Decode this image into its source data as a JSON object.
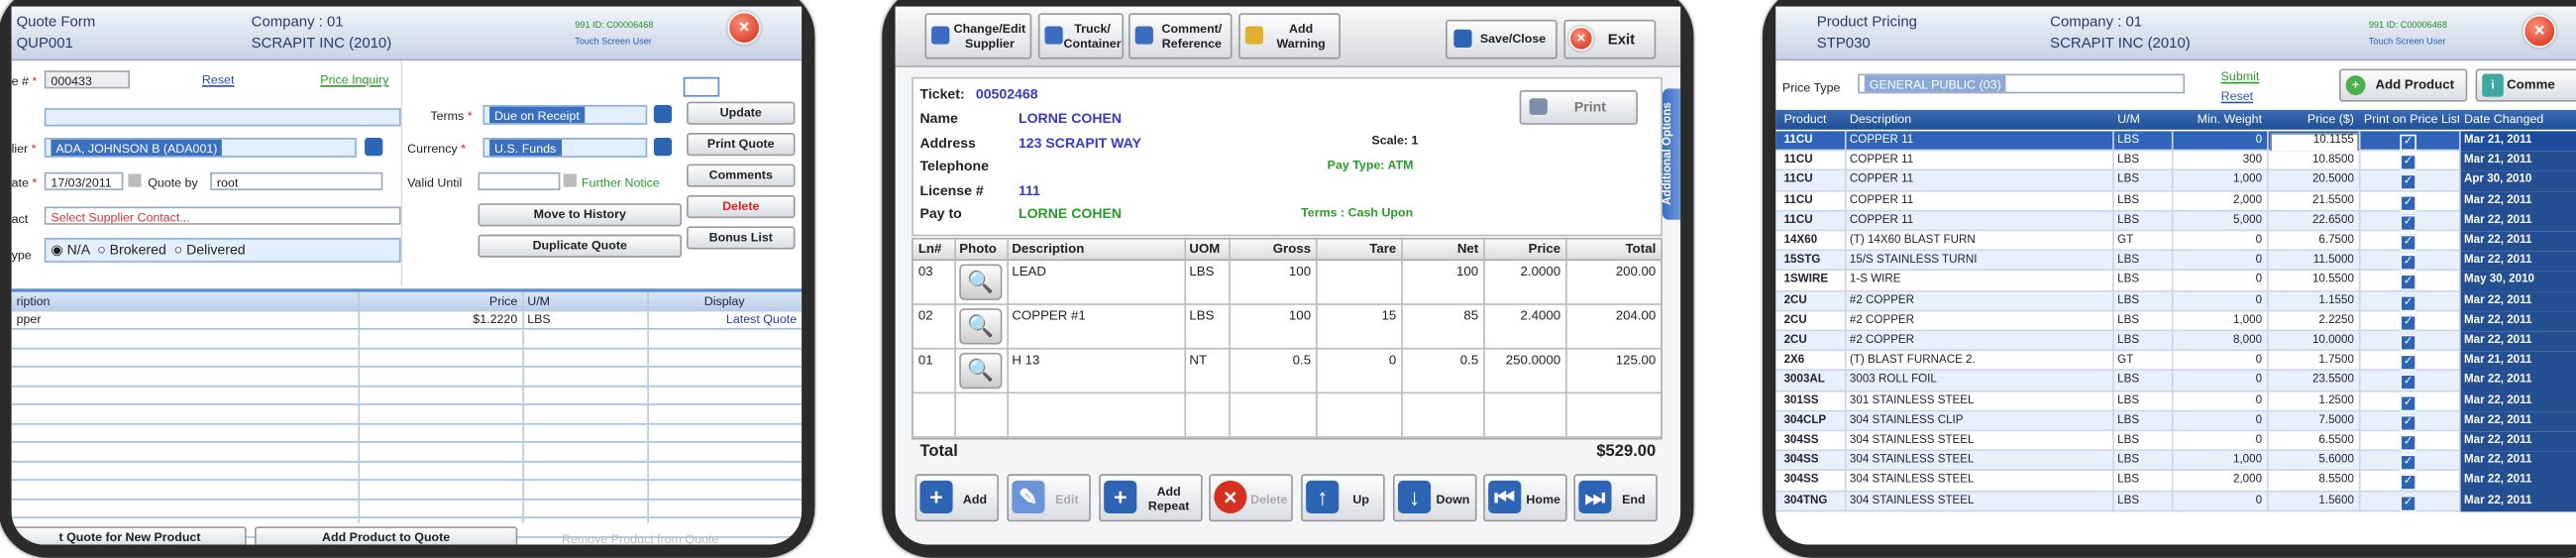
{
  "quote_form": {
    "title": "Quote Form",
    "code": "QUP001",
    "company": "Company : 01",
    "company_name": "SCRAPIT INC (2010)",
    "id": "991 ID: C00006468",
    "user": "Touch Screen User",
    "fields": {
      "quote_label": "e #",
      "quote_no": "000433",
      "reset": "Reset",
      "price_inquiry": "Price Inquiry",
      "terms_label": "Terms",
      "terms": "Due on Receipt",
      "supplier_label": "lier",
      "supplier": "ADA, JOHNSON B (ADA001)",
      "currency_label": "Currency",
      "currency": "U.S. Funds",
      "date_label": "ate",
      "date": "17/03/2011",
      "quote_by_label": "Quote by",
      "quote_by": "root",
      "valid_until_label": "Valid Until",
      "valid_until_note": "Further Notice",
      "contact_label": "act",
      "contact": "Select Supplier Contact...",
      "type_label": "ype",
      "type_options": [
        "N/A",
        "Brokered",
        "Delivered"
      ]
    },
    "buttons": {
      "update": "Update",
      "print_quote": "Print Quote",
      "comments": "Comments",
      "move_to_history": "Move to History",
      "delete": "Delete",
      "duplicate_quote": "Duplicate Quote",
      "bonus_list": "Bonus List"
    },
    "table": {
      "columns": [
        "ription",
        "Price",
        "U/M",
        "Display"
      ],
      "rows": [
        [
          "pper",
          "$1.2220",
          "LBS",
          "Latest Quote"
        ]
      ]
    },
    "bottom_buttons": [
      "t Quote for New Product",
      "Add Product to Quote",
      "Remove Product from Quote"
    ]
  },
  "ticket": {
    "toolbar": [
      "Change/Edit\nSupplier",
      "Truck/\nContainer",
      "Comment/\nReference",
      "Add\nWarning"
    ],
    "save_close": "Save/Close",
    "exit": "Exit",
    "info": {
      "ticket_label": "Ticket:",
      "ticket": "00502468",
      "name_label": "Name",
      "name": "LORNE COHEN",
      "address_label": "Address",
      "address": "123 SCRAPIT WAY",
      "scale": "Scale: 1",
      "telephone_label": "Telephone",
      "pay_type": "Pay Type: ATM",
      "license_label": "License #",
      "license": "111",
      "pay_to_label": "Pay to",
      "pay_to": "LORNE COHEN",
      "terms": "Terms : Cash Upon"
    },
    "print": "Print",
    "side_tab": "Additional Options",
    "table": {
      "columns": [
        "Ln#",
        "Photo",
        "Description",
        "UOM",
        "Gross",
        "Tare",
        "Net",
        "Price",
        "Total"
      ],
      "rows": [
        {
          "ln": "03",
          "description": "LEAD",
          "uom": "LBS",
          "gross": "100",
          "net": "100",
          "price": "2.0000",
          "total": "200.00"
        },
        {
          "ln": "02",
          "description": "COPPER #1",
          "uom": "LBS",
          "gross": "100",
          "tare": "15",
          "net": "85",
          "price": "2.4000",
          "total": "204.00"
        },
        {
          "ln": "01",
          "description": "H 13",
          "uom": "NT",
          "gross": "0.5",
          "tare": "0",
          "net": "0.5",
          "price": "250.0000",
          "total": "125.00"
        }
      ]
    },
    "total_label": "Total",
    "total": "$529.00",
    "buttons": [
      "Add",
      "Edit",
      "Add\nRepeat",
      "Delete",
      "Up",
      "Down",
      "Home",
      "End"
    ]
  },
  "product_pricing": {
    "title": "Product Pricing",
    "code": "STP030",
    "company": "Company : 01",
    "company_name": "SCRAPIT INC (2010)",
    "id": "991 ID: C00006468",
    "user": "Touch Screen User",
    "price_type_label": "Price Type",
    "price_type": "GENERAL PUBLIC (03)",
    "submit": "Submit",
    "reset": "Reset",
    "add_product": "Add Product",
    "comments": "Comme",
    "table": {
      "columns": [
        "Product",
        "Description",
        "U/M",
        "Min. Weight",
        "Price ($)",
        "Print on Price List",
        "Date Changed"
      ],
      "rows": [
        [
          "11CU",
          "COPPER 11",
          "LBS",
          "0",
          "10.1155",
          "Mar 21, 2011"
        ],
        [
          "11CU",
          "COPPER 11",
          "LBS",
          "300",
          "10.8500",
          "Mar 21, 2011"
        ],
        [
          "11CU",
          "COPPER 11",
          "LBS",
          "1,000",
          "20.5000",
          "Apr 30, 2010"
        ],
        [
          "11CU",
          "COPPER 11",
          "LBS",
          "2,000",
          "21.5500",
          "Mar 22, 2011"
        ],
        [
          "11CU",
          "COPPER 11",
          "LBS",
          "5,000",
          "22.6500",
          "Mar 22, 2011"
        ],
        [
          "14X60",
          "(T) 14X60 BLAST FURN",
          "GT",
          "0",
          "6.7500",
          "Mar 22, 2011"
        ],
        [
          "15STG",
          "15/S STAINLESS TURNI",
          "LBS",
          "0",
          "11.5000",
          "Mar 22, 2011"
        ],
        [
          "1SWIRE",
          "1-S WIRE",
          "LBS",
          "0",
          "10.5500",
          "May 30, 2010"
        ],
        [
          "2CU",
          "#2 COPPER",
          "LBS",
          "0",
          "1.1550",
          "Mar 22, 2011"
        ],
        [
          "2CU",
          "#2 COPPER",
          "LBS",
          "1,000",
          "2.2250",
          "Mar 22, 2011"
        ],
        [
          "2CU",
          "#2 COPPER",
          "LBS",
          "8,000",
          "10.0000",
          "Mar 22, 2011"
        ],
        [
          "2X6",
          "(T) BLAST FURNACE 2.",
          "GT",
          "0",
          "1.7500",
          "Mar 21, 2011"
        ],
        [
          "3003AL",
          "3003 ROLL FOIL",
          "LBS",
          "0",
          "23.5500",
          "Mar 22, 2011"
        ],
        [
          "301SS",
          "301 STAINLESS STEEL",
          "LBS",
          "0",
          "1.2500",
          "Mar 22, 2011"
        ],
        [
          "304CLP",
          "304 STAINLESS CLIP",
          "LBS",
          "0",
          "7.5000",
          "Mar 22, 2011"
        ],
        [
          "304SS",
          "304 STAINLESS STEEL",
          "LBS",
          "0",
          "6.5500",
          "Mar 22, 2011"
        ],
        [
          "304SS",
          "304 STAINLESS STEEL",
          "LBS",
          "1,000",
          "5.6000",
          "Mar 22, 2011"
        ],
        [
          "304SS",
          "304 STAINLESS STEEL",
          "LBS",
          "2,000",
          "8.5500",
          "Mar 22, 2011"
        ],
        [
          "304TNG",
          "304 STAINLESS STEEL",
          "LBS",
          "0",
          "1.5600",
          "Mar 22, 2011"
        ]
      ]
    }
  }
}
